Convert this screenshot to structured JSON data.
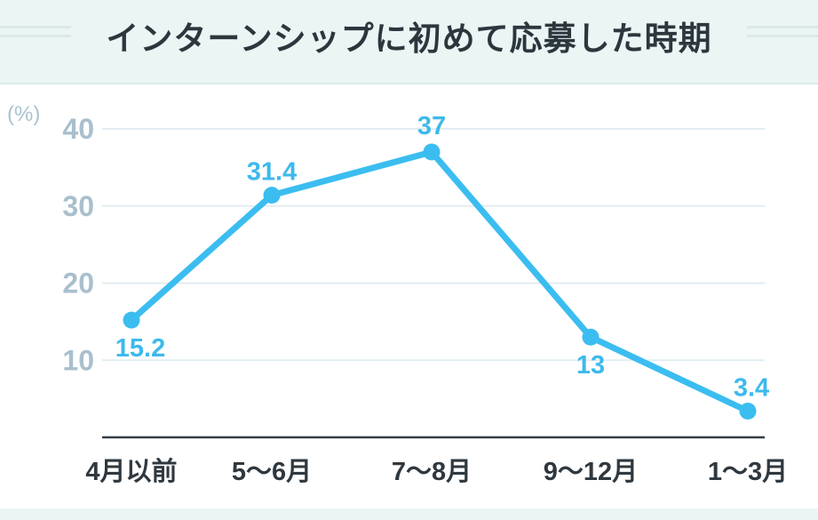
{
  "header": {
    "title": "インターンシップに初めて応募した時期"
  },
  "chart_data": {
    "type": "line",
    "title": "インターンシップに初めて応募した時期",
    "categories": [
      "4月以前",
      "5〜6月",
      "7〜8月",
      "9〜12月",
      "1〜3月"
    ],
    "values": [
      15.2,
      31.4,
      37,
      13,
      3.4
    ],
    "unit_label": "(%)",
    "xlabel": "",
    "ylabel": "(%)",
    "y_ticks": [
      10,
      20,
      30,
      40
    ],
    "ylim": [
      0,
      43
    ],
    "grid": true,
    "legend": "none"
  },
  "colors": {
    "band_background": "#eaf5f4",
    "band_edge": "#dce9e9",
    "page_background": "#ffffff",
    "title_text": "#2c363d",
    "line": "#3bbdf0",
    "point": "#3bbdf0",
    "data_label": "#3db9ec",
    "grid_line": "#e2edf2",
    "y_tick_text": "#a9bfcd",
    "unit_text": "#a9c2cf",
    "axis_line": "#333e46",
    "x_label_text": "#2f383f"
  }
}
